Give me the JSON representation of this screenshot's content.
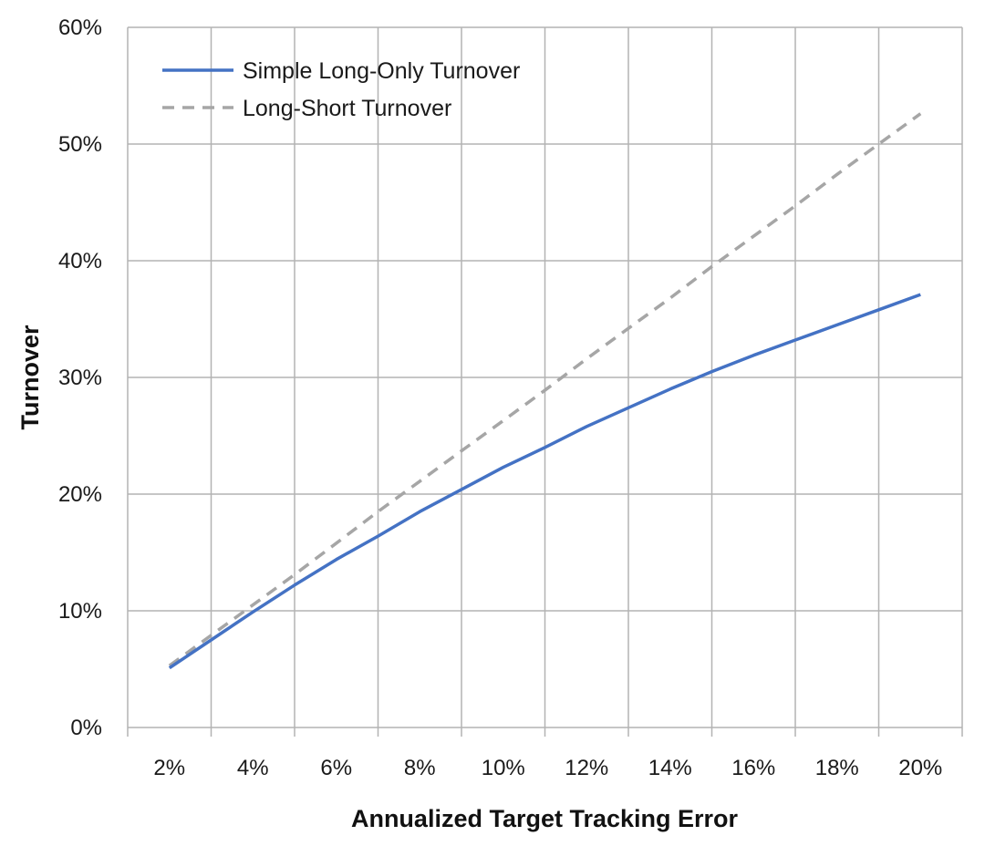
{
  "chart_data": {
    "type": "line",
    "title": "",
    "xlabel": "Annualized Target Tracking Error",
    "ylabel": "Turnover",
    "x": [
      2,
      4,
      6,
      8,
      10,
      12,
      14,
      16,
      18,
      20
    ],
    "x_tick_labels": [
      "2%",
      "4%",
      "6%",
      "8%",
      "10%",
      "12%",
      "14%",
      "16%",
      "18%",
      "20%"
    ],
    "y_tick_labels": [
      "0%",
      "10%",
      "20%",
      "30%",
      "40%",
      "50%",
      "60%"
    ],
    "y_ticks": [
      0,
      10,
      20,
      30,
      40,
      50,
      60
    ],
    "ylim": [
      0,
      60
    ],
    "grid": true,
    "legend_position": "top-left",
    "series": [
      {
        "name": "Simple Long-Only Turnover",
        "style": "solid",
        "color": "#4472c4",
        "points": [
          [
            2,
            5.1
          ],
          [
            3,
            7.5
          ],
          [
            4,
            9.9
          ],
          [
            5,
            12.2
          ],
          [
            6,
            14.4
          ],
          [
            7,
            16.4
          ],
          [
            8,
            18.5
          ],
          [
            9,
            20.4
          ],
          [
            10,
            22.3
          ],
          [
            11,
            24.0
          ],
          [
            12,
            25.8
          ],
          [
            13,
            27.4
          ],
          [
            14,
            29.0
          ],
          [
            15,
            30.5
          ],
          [
            16,
            31.9
          ],
          [
            17,
            33.2
          ],
          [
            18,
            34.5
          ],
          [
            19,
            35.8
          ],
          [
            20,
            37.1
          ]
        ]
      },
      {
        "name": "Long-Short Turnover",
        "style": "dashed",
        "color": "#a6a6a6",
        "points": [
          [
            2,
            5.3
          ],
          [
            3,
            7.9
          ],
          [
            4,
            10.5
          ],
          [
            5,
            13.1
          ],
          [
            6,
            15.8
          ],
          [
            7,
            18.5
          ],
          [
            8,
            21.1
          ],
          [
            9,
            23.7
          ],
          [
            10,
            26.3
          ],
          [
            11,
            28.9
          ],
          [
            12,
            31.6
          ],
          [
            13,
            34.2
          ],
          [
            14,
            36.8
          ],
          [
            15,
            39.5
          ],
          [
            16,
            42.1
          ],
          [
            17,
            44.7
          ],
          [
            18,
            47.4
          ],
          [
            19,
            50.0
          ],
          [
            20,
            52.6
          ]
        ]
      }
    ]
  }
}
